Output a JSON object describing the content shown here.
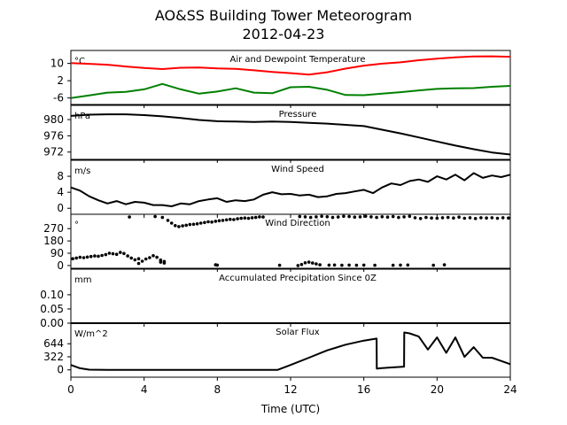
{
  "title": "AO&SS Building Tower Meteorogram",
  "subtitle": "2012-04-23",
  "xlabel": "Time (UTC)",
  "chart_data": {
    "type": "line",
    "xlabel": "Time (UTC)",
    "x_ticks": [
      0,
      4,
      8,
      12,
      16,
      20,
      24
    ],
    "xlim": [
      0,
      24
    ],
    "panels": [
      {
        "id": "temp",
        "title": "Air and Dewpoint Temperature",
        "unit": "°C",
        "ylim": [
          -9,
          16
        ],
        "y_ticks": [
          10,
          2,
          -6
        ],
        "series": [
          {
            "name": "",
            "color": "#ff0000",
            "x": [
              0,
              1,
              2,
              3,
              4,
              5,
              6,
              7,
              8,
              9,
              10,
              11,
              12,
              13,
              14,
              15,
              16,
              17,
              18,
              19,
              20,
              21,
              22,
              23,
              24
            ],
            "y": [
              10.2,
              9.8,
              9.4,
              8.6,
              7.9,
              7.4,
              8.0,
              8.1,
              7.7,
              7.5,
              6.8,
              6.1,
              5.5,
              4.8,
              5.9,
              7.6,
              9.0,
              9.9,
              10.5,
              11.5,
              12.2,
              12.8,
              13.2,
              13.3,
              13.1
            ]
          },
          {
            "name": "",
            "color": "#008000",
            "x": [
              0,
              1,
              2,
              3,
              4,
              5,
              6,
              7,
              8,
              9,
              10,
              11,
              12,
              13,
              14,
              15,
              16,
              17,
              18,
              19,
              20,
              21,
              22,
              23,
              24
            ],
            "y": [
              -6.0,
              -4.8,
              -3.5,
              -3.2,
              -2.0,
              0.5,
              -2.0,
              -4.0,
              -3.0,
              -1.5,
              -3.5,
              -3.8,
              -1.0,
              -0.8,
              -2.2,
              -4.6,
              -4.7,
              -4.0,
              -3.3,
              -2.5,
              -1.8,
              -1.5,
              -1.4,
              -0.8,
              -0.4
            ]
          }
        ]
      },
      {
        "id": "pressure",
        "title": "Pressure",
        "unit": "hPa",
        "ylim": [
          970.2,
          983.5
        ],
        "y_ticks": [
          980,
          976,
          972
        ],
        "series": [
          {
            "name": "",
            "color": "#000000",
            "x": [
              0,
              1,
              2,
              3,
              4,
              5,
              6,
              7,
              8,
              9,
              10,
              11,
              12,
              13,
              14,
              15,
              16,
              17,
              18,
              19,
              20,
              21,
              22,
              23,
              24
            ],
            "y": [
              980.9,
              981.2,
              981.3,
              981.3,
              981.1,
              980.8,
              980.4,
              979.9,
              979.6,
              979.5,
              979.4,
              979.5,
              979.4,
              979.2,
              979.0,
              978.7,
              978.4,
              977.5,
              976.6,
              975.6,
              974.6,
              973.6,
              972.7,
              971.9,
              971.4
            ]
          }
        ]
      },
      {
        "id": "wind",
        "title": "Wind Speed",
        "unit": "m/s",
        "ylim": [
          -1.5,
          12
        ],
        "y_ticks": [
          8,
          4,
          0
        ],
        "series": [
          {
            "name": "",
            "color": "#000000",
            "x": [
              0,
              0.5,
              1,
              1.5,
              2,
              2.5,
              3,
              3.5,
              4,
              4.5,
              5,
              5.5,
              6,
              6.5,
              7,
              7.5,
              8,
              8.5,
              9,
              9.5,
              10,
              10.5,
              11,
              11.5,
              12,
              12.5,
              13,
              13.5,
              14,
              14.5,
              15,
              15.5,
              16,
              16.5,
              17,
              17.5,
              18,
              18.5,
              19,
              19.5,
              20,
              20.5,
              21,
              21.5,
              22,
              22.5,
              23,
              23.5,
              24
            ],
            "y": [
              5.2,
              4.4,
              3.0,
              2.0,
              1.2,
              1.8,
              1.0,
              1.6,
              1.4,
              0.8,
              0.8,
              0.5,
              1.2,
              1.0,
              1.8,
              2.2,
              2.5,
              1.6,
              2.0,
              1.8,
              2.2,
              3.4,
              4.0,
              3.5,
              3.6,
              3.2,
              3.4,
              2.8,
              3.0,
              3.6,
              3.8,
              4.2,
              4.6,
              3.8,
              5.2,
              6.2,
              5.8,
              6.8,
              7.2,
              6.6,
              8.0,
              7.2,
              8.4,
              7.0,
              8.8,
              7.6,
              8.2,
              7.8,
              8.4
            ]
          }
        ]
      },
      {
        "id": "winddir",
        "title": "Wind Direction",
        "unit": "°",
        "ylim": [
          -20,
          375
        ],
        "y_ticks": [
          270,
          180,
          90,
          0
        ],
        "points": [
          [
            0.1,
            50
          ],
          [
            0.3,
            55
          ],
          [
            0.5,
            60
          ],
          [
            0.7,
            58
          ],
          [
            0.9,
            62
          ],
          [
            1.1,
            66
          ],
          [
            1.3,
            70
          ],
          [
            1.5,
            68
          ],
          [
            1.7,
            74
          ],
          [
            1.9,
            80
          ],
          [
            2.1,
            90
          ],
          [
            2.3,
            86
          ],
          [
            2.5,
            82
          ],
          [
            2.7,
            96
          ],
          [
            2.9,
            88
          ],
          [
            3.1,
            70
          ],
          [
            3.3,
            55
          ],
          [
            3.5,
            42
          ],
          [
            3.7,
            50
          ],
          [
            3.9,
            32
          ],
          [
            4.1,
            48
          ],
          [
            4.3,
            58
          ],
          [
            4.5,
            72
          ],
          [
            4.7,
            60
          ],
          [
            4.9,
            40
          ],
          [
            5.1,
            30
          ],
          [
            3.2,
            355
          ],
          [
            4.6,
            358
          ],
          [
            5.0,
            352
          ],
          [
            5.3,
            330
          ],
          [
            5.5,
            310
          ],
          [
            5.7,
            292
          ],
          [
            5.9,
            285
          ],
          [
            6.1,
            290
          ],
          [
            6.3,
            295
          ],
          [
            6.5,
            300
          ],
          [
            6.7,
            302
          ],
          [
            6.9,
            305
          ],
          [
            7.1,
            310
          ],
          [
            7.3,
            315
          ],
          [
            7.5,
            320
          ],
          [
            7.7,
            318
          ],
          [
            7.9,
            324
          ],
          [
            8.1,
            328
          ],
          [
            8.3,
            330
          ],
          [
            8.5,
            334
          ],
          [
            8.7,
            338
          ],
          [
            8.9,
            336
          ],
          [
            9.1,
            342
          ],
          [
            9.3,
            345
          ],
          [
            9.5,
            348
          ],
          [
            9.7,
            345
          ],
          [
            9.9,
            350
          ],
          [
            10.1,
            352
          ],
          [
            10.3,
            356
          ],
          [
            10.5,
            355
          ],
          [
            12.4,
            0
          ],
          [
            12.6,
            8
          ],
          [
            12.8,
            20
          ],
          [
            13.0,
            25
          ],
          [
            13.2,
            18
          ],
          [
            13.4,
            12
          ],
          [
            13.6,
            5
          ],
          [
            12.5,
            358
          ],
          [
            12.8,
            356
          ],
          [
            13.1,
            352
          ],
          [
            13.4,
            356
          ],
          [
            13.7,
            360
          ],
          [
            14.0,
            357
          ],
          [
            14.3,
            352
          ],
          [
            14.6,
            355
          ],
          [
            14.9,
            360
          ],
          [
            15.2,
            358
          ],
          [
            15.5,
            354
          ],
          [
            15.8,
            356
          ],
          [
            16.1,
            360
          ],
          [
            16.4,
            356
          ],
          [
            16.7,
            352
          ],
          [
            17.0,
            357
          ],
          [
            17.3,
            354
          ],
          [
            17.6,
            358
          ],
          [
            17.9,
            352
          ],
          [
            18.2,
            356
          ],
          [
            18.5,
            360
          ],
          [
            18.8,
            350
          ],
          [
            19.1,
            344
          ],
          [
            19.4,
            352
          ],
          [
            19.7,
            348
          ],
          [
            20.0,
            346
          ],
          [
            20.3,
            350
          ],
          [
            20.6,
            352
          ],
          [
            20.9,
            348
          ],
          [
            21.2,
            354
          ],
          [
            21.5,
            346
          ],
          [
            21.8,
            350
          ],
          [
            22.1,
            344
          ],
          [
            22.4,
            350
          ],
          [
            22.7,
            348
          ],
          [
            23.0,
            350
          ],
          [
            23.3,
            346
          ],
          [
            23.6,
            350
          ],
          [
            23.9,
            348
          ],
          [
            7.9,
            5
          ],
          [
            8.0,
            3
          ],
          [
            11.4,
            2
          ],
          [
            14.1,
            3
          ],
          [
            14.4,
            4
          ],
          [
            14.8,
            2
          ],
          [
            15.2,
            3
          ],
          [
            15.6,
            2
          ],
          [
            16.0,
            3
          ],
          [
            16.6,
            2
          ],
          [
            17.6,
            2
          ],
          [
            18.0,
            3
          ],
          [
            18.4,
            4
          ],
          [
            19.8,
            2
          ],
          [
            20.4,
            5
          ],
          [
            3.7,
            15
          ],
          [
            4.9,
            25
          ],
          [
            5.1,
            18
          ]
        ]
      },
      {
        "id": "precip",
        "title": "Accumulated Precipitation Since 0Z",
        "unit": "mm",
        "ylim": [
          0,
          0.19
        ],
        "y_ticks": [
          "0.10",
          "0.05",
          "0.00"
        ],
        "series": [
          {
            "name": "",
            "color": "#000000",
            "x": [
              0,
              24
            ],
            "y": [
              0,
              0
            ]
          }
        ]
      },
      {
        "id": "solar",
        "title": "Solar Flux",
        "unit": "W/m^2",
        "ylim": [
          -180,
          1150
        ],
        "y_ticks": [
          644,
          322,
          0
        ],
        "series": [
          {
            "name": "",
            "color": "#000000",
            "x": [
              0,
              0.5,
              1,
              2,
              4,
              6,
              8,
              10,
              11.3,
              12,
              13,
              14,
              15,
              16,
              16.7,
              16.71,
              16.9,
              17.5,
              18.2,
              18.21,
              18.5,
              19,
              19.5,
              20,
              20.5,
              21,
              21.5,
              22,
              22.5,
              23,
              23.5,
              24
            ],
            "y": [
              120,
              40,
              5,
              0,
              0,
              0,
              0,
              0,
              0,
              120,
              300,
              480,
              620,
              720,
              770,
              30,
              40,
              60,
              80,
              920,
              900,
              820,
              500,
              800,
              420,
              800,
              320,
              560,
              300,
              300,
              220,
              140
            ]
          }
        ]
      }
    ]
  }
}
